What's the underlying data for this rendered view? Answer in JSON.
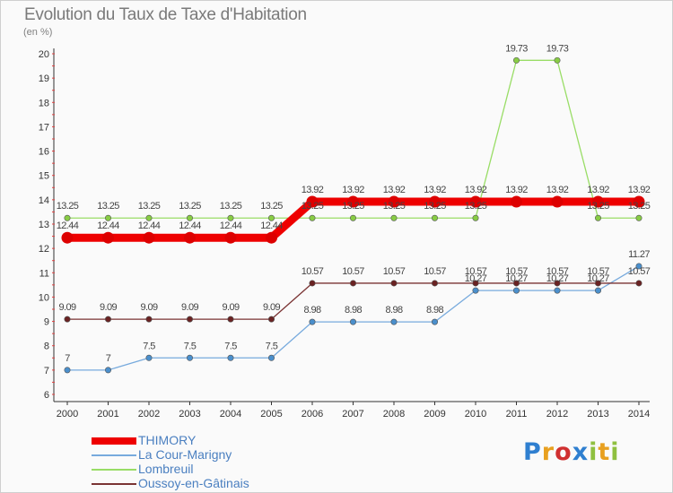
{
  "title": "Evolution du Taux de Taxe d'Habitation",
  "unit_label": "(en %)",
  "logo": {
    "letters": [
      {
        "ch": "P",
        "color": "#2f7fd0"
      },
      {
        "ch": "r",
        "color": "#e8a020"
      },
      {
        "ch": "o",
        "color": "#d03030"
      },
      {
        "ch": "x",
        "color": "#2f7fd0"
      },
      {
        "ch": "i",
        "color": "#8fc040"
      },
      {
        "ch": "t",
        "color": "#e8a020"
      },
      {
        "ch": "i",
        "color": "#8fc040"
      }
    ]
  },
  "chart_data": {
    "type": "line",
    "categories": [
      "2000",
      "2001",
      "2002",
      "2003",
      "2004",
      "2005",
      "2006",
      "2007",
      "2008",
      "2009",
      "2010",
      "2011",
      "2012",
      "2013",
      "2014"
    ],
    "ylim": [
      6,
      20
    ],
    "yticks": [
      6,
      7,
      8,
      9,
      10,
      11,
      12,
      13,
      14,
      15,
      16,
      17,
      18,
      19,
      20
    ],
    "grid": false,
    "legend_position": "bottom-left",
    "series": [
      {
        "name": "Lombreuil",
        "color": "#99dd66",
        "point_color": "#88cc44",
        "width": 1.3,
        "values": [
          13.25,
          13.25,
          13.25,
          13.25,
          13.25,
          13.25,
          13.25,
          13.25,
          13.25,
          13.25,
          13.25,
          19.73,
          19.73,
          13.25,
          13.25
        ],
        "labels": [
          "13.25",
          "13.25",
          "13.25",
          "13.25",
          "13.25",
          "13.25",
          "13.25",
          "13.25",
          "13.25",
          "13.25",
          "13.25",
          "19.73",
          "19.73",
          "13.25",
          "13.25"
        ]
      },
      {
        "name": "La Cour-Marigny",
        "color": "#77aadd",
        "point_color": "#4a8fcc",
        "width": 1.3,
        "values": [
          7,
          7,
          7.5,
          7.5,
          7.5,
          7.5,
          8.98,
          8.98,
          8.98,
          8.98,
          10.27,
          10.27,
          10.27,
          10.27,
          11.27
        ],
        "labels": [
          "7",
          "7",
          "7.5",
          "7.5",
          "7.5",
          "7.5",
          "8.98",
          "8.98",
          "8.98",
          "8.98",
          "10.27",
          "10.27",
          "10.27",
          "10.27",
          "11.27"
        ]
      },
      {
        "name": "Oussoy-en-Gâtinais",
        "color": "#7a3333",
        "point_color": "#6a2222",
        "width": 1.3,
        "values": [
          9.09,
          9.09,
          9.09,
          9.09,
          9.09,
          9.09,
          10.57,
          10.57,
          10.57,
          10.57,
          10.57,
          10.57,
          10.57,
          10.57,
          10.57
        ],
        "labels": [
          "9.09",
          "9.09",
          "9.09",
          "9.09",
          "9.09",
          "9.09",
          "10.57",
          "10.57",
          "10.57",
          "10.57",
          "10.57",
          "10.57",
          "10.57",
          "10.57",
          "10.57"
        ]
      },
      {
        "name": "THIMORY",
        "color": "#ee0000",
        "point_color": "#dd0000",
        "width": 9,
        "values": [
          12.44,
          12.44,
          12.44,
          12.44,
          12.44,
          12.44,
          13.92,
          13.92,
          13.92,
          13.92,
          13.92,
          13.92,
          13.92,
          13.92,
          13.92
        ],
        "labels": [
          "12.44",
          "12.44",
          "12.44",
          "12.44",
          "12.44",
          "12.44",
          "13.92",
          "13.92",
          "13.92",
          "13.92",
          "13.92",
          "13.92",
          "13.92",
          "13.92",
          "13.92"
        ]
      }
    ],
    "legend_order": [
      "THIMORY",
      "La Cour-Marigny",
      "Lombreuil",
      "Oussoy-en-Gâtinais"
    ]
  }
}
